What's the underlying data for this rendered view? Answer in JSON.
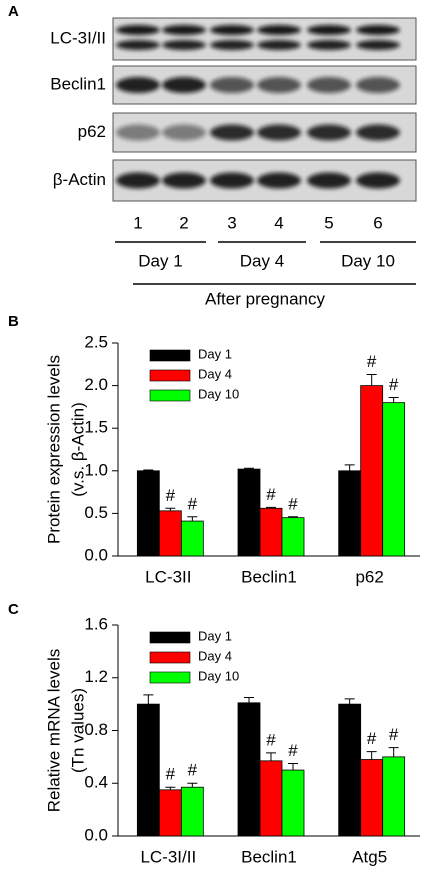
{
  "blot": {
    "label": "A",
    "proteins": [
      "LC-3I/II",
      "Beclin1",
      "p62",
      "β-Actin"
    ],
    "lanes": [
      "1",
      "2",
      "3",
      "4",
      "5",
      "6"
    ],
    "groups": [
      "Day 1",
      "Day 4",
      "Day 10"
    ],
    "caption": "After pregnancy"
  },
  "chart_data": [
    {
      "type": "bar",
      "panel": "B",
      "ylabel": [
        "Protein expression levels",
        "(v.s. β-Actin)"
      ],
      "categories": [
        "LC-3II",
        "Beclin1",
        "p62"
      ],
      "series": [
        {
          "name": "Day 1",
          "color": "#000000",
          "values": [
            1.0,
            1.02,
            1.0
          ],
          "errors": [
            0.01,
            0.01,
            0.07
          ]
        },
        {
          "name": "Day 4",
          "color": "#ff0000",
          "values": [
            0.53,
            0.56,
            2.0
          ],
          "errors": [
            0.03,
            0.01,
            0.13
          ],
          "significance": [
            "#",
            "#",
            "#"
          ]
        },
        {
          "name": "Day 10",
          "color": "#00ff00",
          "values": [
            0.41,
            0.45,
            1.8
          ],
          "errors": [
            0.05,
            0.01,
            0.06
          ],
          "significance": [
            "#",
            "#",
            "#"
          ]
        }
      ],
      "ylim": [
        0,
        2.5
      ],
      "yticks": [
        {
          "value": 0,
          "label": "0.0"
        },
        0.5,
        {
          "value": 1,
          "label": "1.0"
        },
        1.5,
        {
          "value": 2,
          "label": "2.0"
        },
        2.5
      ],
      "legend": "upper left"
    },
    {
      "type": "bar",
      "panel": "C",
      "ylabel": [
        "Relative mRNA levels",
        "(Tn values)"
      ],
      "categories": [
        "LC-3I/II",
        "Beclin1",
        "Atg5"
      ],
      "series": [
        {
          "name": "Day 1",
          "color": "#000000",
          "values": [
            1.0,
            1.01,
            1.0
          ],
          "errors": [
            0.07,
            0.04,
            0.04
          ]
        },
        {
          "name": "Day 4",
          "color": "#ff0000",
          "values": [
            0.35,
            0.57,
            0.58
          ],
          "errors": [
            0.02,
            0.06,
            0.06
          ],
          "significance": [
            "#",
            "#",
            "#"
          ]
        },
        {
          "name": "Day 10",
          "color": "#00ff00",
          "values": [
            0.37,
            0.5,
            0.6
          ],
          "errors": [
            0.03,
            0.05,
            0.07
          ],
          "significance": [
            "#",
            "#",
            "#"
          ]
        }
      ],
      "ylim": [
        0,
        1.6
      ],
      "yticks": [
        {
          "value": 0,
          "label": "0.0"
        },
        0.4,
        0.8,
        1.2,
        1.6
      ],
      "legend": "upper left"
    }
  ]
}
